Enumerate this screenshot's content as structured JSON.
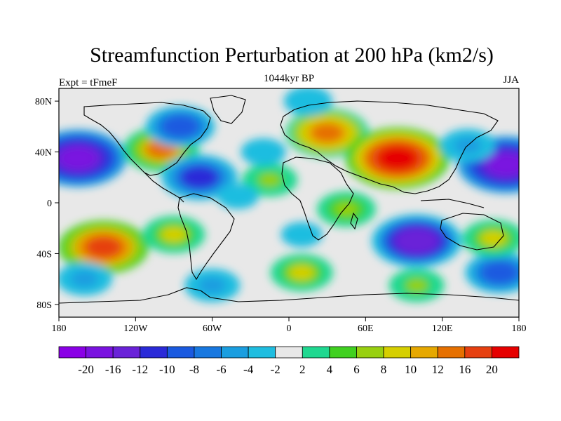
{
  "title": "Streamfunction Perturbation at 200 hPa (km2/s)",
  "left_label": "Expt = tFmeF",
  "center_label": "1044kyr BP",
  "right_label": "JJA",
  "lat_ticks": [
    "80N",
    "40N",
    "0",
    "40S",
    "80S"
  ],
  "lon_ticks": [
    "180",
    "120W",
    "60W",
    "0",
    "60E",
    "120E",
    "180"
  ],
  "lat_tick_values": [
    80,
    40,
    0,
    -40,
    -80
  ],
  "lon_tick_values": [
    -180,
    -120,
    -60,
    0,
    60,
    120,
    180
  ],
  "map_extent": {
    "lon": [
      -180,
      180
    ],
    "lat": [
      -90,
      90
    ]
  },
  "colorbar": {
    "labels": [
      "-20",
      "-16",
      "-12",
      "-10",
      "-8",
      "-6",
      "-4",
      "-2",
      "2",
      "4",
      "6",
      "8",
      "10",
      "12",
      "16",
      "20"
    ],
    "colors": [
      "#8a00e6",
      "#7a12e0",
      "#6a22d8",
      "#2a2ad8",
      "#1a5ae0",
      "#1878e0",
      "#1a9ee0",
      "#1fbde0",
      "#e8e8e8",
      "#1fd890",
      "#40d020",
      "#98d010",
      "#d6cf00",
      "#e6a800",
      "#e67000",
      "#e64010",
      "#e60000"
    ]
  },
  "fields": [
    {
      "lon": -165,
      "lat": 35,
      "v": -18
    },
    {
      "lon": 170,
      "lat": 30,
      "v": -18
    },
    {
      "lon": -100,
      "lat": 42,
      "v": 12
    },
    {
      "lon": -85,
      "lat": 60,
      "v": -10
    },
    {
      "lon": -70,
      "lat": 20,
      "v": -12
    },
    {
      "lon": -15,
      "lat": 18,
      "v": 6
    },
    {
      "lon": 30,
      "lat": 55,
      "v": 14
    },
    {
      "lon": 85,
      "lat": 35,
      "v": 20
    },
    {
      "lon": 140,
      "lat": 45,
      "v": -6
    },
    {
      "lon": -145,
      "lat": -35,
      "v": 16
    },
    {
      "lon": -90,
      "lat": -25,
      "v": 8
    },
    {
      "lon": -40,
      "lat": 5,
      "v": -2
    },
    {
      "lon": 10,
      "lat": -25,
      "v": -2
    },
    {
      "lon": 45,
      "lat": -5,
      "v": 7
    },
    {
      "lon": 100,
      "lat": -30,
      "v": -16
    },
    {
      "lon": 165,
      "lat": -55,
      "v": -10
    },
    {
      "lon": -160,
      "lat": -60,
      "v": -6
    },
    {
      "lon": -60,
      "lat": -65,
      "v": -6
    },
    {
      "lon": 10,
      "lat": -55,
      "v": 8
    },
    {
      "lon": 100,
      "lat": -65,
      "v": 6
    },
    {
      "lon": 160,
      "lat": -28,
      "v": 8
    },
    {
      "lon": -20,
      "lat": 40,
      "v": -3
    },
    {
      "lon": 15,
      "lat": 80,
      "v": -4
    }
  ]
}
